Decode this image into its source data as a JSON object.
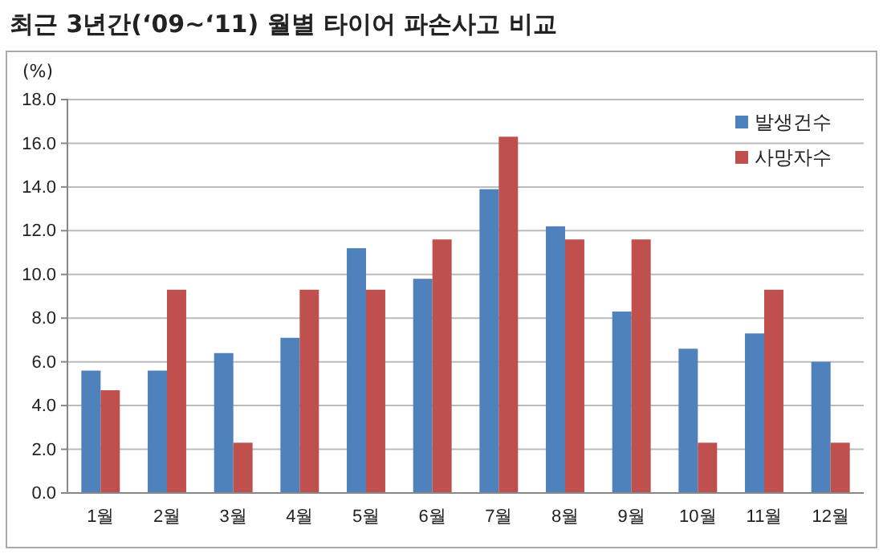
{
  "chart_data": {
    "type": "bar",
    "title": "최근 3년간(‘09~‘11) 월별 타이어 파손사고 비교",
    "ylabel": "(%)",
    "categories": [
      "1월",
      "2월",
      "3월",
      "4월",
      "5월",
      "6월",
      "7월",
      "8월",
      "9월",
      "10월",
      "11월",
      "12월"
    ],
    "series": [
      {
        "name": "발생건수",
        "color": "#4f81bd",
        "values": [
          5.6,
          5.6,
          6.4,
          7.1,
          11.2,
          9.8,
          13.9,
          12.2,
          8.3,
          6.6,
          7.3,
          6.0
        ]
      },
      {
        "name": "사망자수",
        "color": "#c0504d",
        "values": [
          4.7,
          9.3,
          2.3,
          9.3,
          9.3,
          11.6,
          16.3,
          11.6,
          11.6,
          2.3,
          9.3,
          2.3
        ]
      }
    ],
    "ylim": [
      0,
      18
    ],
    "yticks": [
      {
        "value": 0,
        "label": "0.0"
      },
      {
        "value": 2,
        "label": "2.0"
      },
      {
        "value": 4,
        "label": "4.0"
      },
      {
        "value": 6,
        "label": "6.0"
      },
      {
        "value": 8,
        "label": "8.0"
      },
      {
        "value": 10,
        "label": "10.0"
      },
      {
        "value": 12,
        "label": "12.0"
      },
      {
        "value": 14,
        "label": "14.0"
      },
      {
        "value": 16,
        "label": "16.0"
      },
      {
        "value": 18,
        "label": "18.0"
      }
    ],
    "grid": "y",
    "legend": "top right"
  }
}
